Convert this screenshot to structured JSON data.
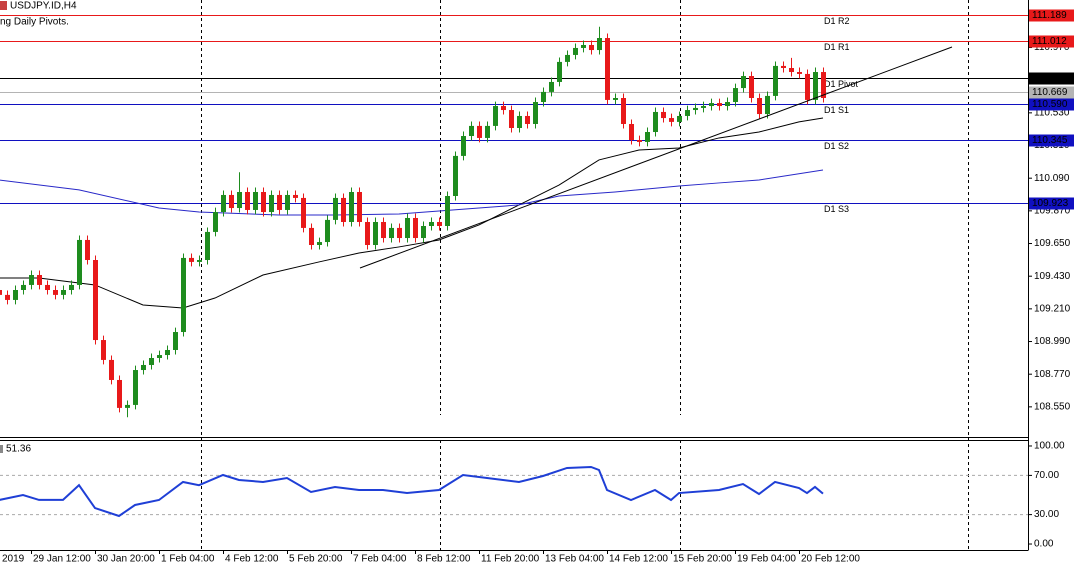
{
  "chart_data": [
    {
      "type": "candlestick",
      "title": "USDJPY.ID,H4",
      "subtitle": "ng Daily Pivots.",
      "categories": [
        "2019",
        null,
        null,
        null,
        "29 Jan 12:00",
        null,
        null,
        null,
        null,
        null,
        null,
        null,
        "30 Jan 20:00",
        null,
        null,
        null,
        null,
        null,
        null,
        null,
        "1 Feb 04:00",
        null,
        null,
        null,
        null,
        null,
        null,
        null,
        "4 Feb 12:00",
        null,
        null,
        null,
        null,
        null,
        null,
        null,
        "5 Feb 20:00",
        null,
        null,
        null,
        null,
        null,
        null,
        null,
        "7 Feb 04:00",
        null,
        null,
        null,
        null,
        null,
        null,
        null,
        "8 Feb 12:00",
        null,
        null,
        null,
        null,
        null,
        null,
        null,
        "11 Feb 20:00",
        null,
        null,
        null,
        null,
        null,
        null,
        null,
        "13 Feb 04:00",
        null,
        null,
        null,
        null,
        null,
        null,
        null,
        "14 Feb 12:00",
        null,
        null,
        null,
        null,
        null,
        null,
        null,
        "15 Feb 20:00",
        null,
        null,
        null,
        null,
        null,
        null,
        null,
        "19 Feb 04:00",
        null,
        null,
        null,
        null,
        null,
        null,
        null,
        "20 Feb 12:00",
        null,
        null,
        null
      ],
      "open": [
        109.337,
        109.304,
        109.27,
        109.337,
        109.371,
        109.438,
        109.371,
        109.337,
        109.304,
        109.337,
        109.371,
        109.674,
        109.539,
        109.0,
        108.866,
        108.731,
        108.543,
        108.563,
        108.798,
        108.832,
        108.879,
        108.899,
        108.933,
        109.054,
        109.553,
        109.526,
        109.539,
        109.728,
        109.862,
        109.977,
        109.889,
        109.997,
        109.876,
        109.997,
        109.862,
        109.977,
        109.876,
        109.977,
        109.957,
        109.755,
        109.64,
        109.66,
        109.809,
        109.957,
        109.795,
        109.997,
        109.795,
        109.64,
        109.795,
        109.687,
        109.755,
        109.687,
        109.822,
        109.687,
        109.768,
        109.795,
        109.768,
        109.97,
        110.24,
        110.374,
        110.442,
        110.361,
        110.442,
        110.576,
        110.549,
        110.428,
        110.509,
        110.455,
        110.603,
        110.671,
        110.738,
        110.873,
        110.92,
        110.967,
        110.987,
        110.953,
        111.034,
        110.617,
        110.63,
        110.455,
        110.347,
        110.334,
        110.401,
        110.536,
        110.495,
        110.469,
        110.509,
        110.549,
        110.563,
        110.576,
        110.596,
        110.576,
        110.603,
        110.697,
        110.778,
        110.63,
        110.522,
        110.644,
        110.846,
        110.832,
        110.805,
        110.792,
        110.617,
        110.805
      ],
      "high": [
        109.367,
        109.334,
        109.367,
        109.401,
        109.468,
        109.468,
        109.401,
        109.367,
        109.367,
        109.401,
        109.704,
        109.704,
        109.569,
        109.03,
        108.896,
        108.761,
        108.593,
        108.828,
        108.862,
        108.909,
        108.929,
        108.963,
        109.084,
        109.583,
        109.583,
        109.569,
        109.758,
        109.892,
        110.007,
        110.007,
        110.13,
        110.027,
        110.027,
        110.027,
        110.007,
        110.007,
        110.007,
        110.007,
        109.987,
        109.785,
        109.69,
        109.839,
        109.987,
        109.987,
        110.027,
        110.027,
        109.825,
        109.825,
        109.825,
        109.785,
        109.785,
        109.852,
        109.852,
        109.798,
        109.825,
        109.825,
        110.0,
        110.27,
        110.404,
        110.472,
        110.472,
        110.472,
        110.606,
        110.606,
        110.579,
        110.539,
        110.539,
        110.633,
        110.701,
        110.768,
        110.903,
        110.95,
        110.997,
        111.017,
        111.017,
        111.11,
        111.064,
        110.66,
        110.66,
        110.485,
        110.377,
        110.431,
        110.566,
        110.566,
        110.525,
        110.539,
        110.579,
        110.593,
        110.606,
        110.626,
        110.626,
        110.633,
        110.727,
        110.808,
        110.808,
        110.66,
        110.674,
        110.876,
        110.876,
        110.9,
        110.835,
        110.822,
        110.835,
        110.835
      ],
      "low": [
        109.274,
        109.24,
        109.24,
        109.307,
        109.341,
        109.341,
        109.307,
        109.274,
        109.274,
        109.307,
        109.341,
        109.509,
        108.97,
        108.836,
        108.701,
        108.513,
        108.48,
        108.533,
        108.768,
        108.802,
        108.849,
        108.869,
        108.903,
        109.024,
        109.496,
        109.496,
        109.509,
        109.698,
        109.832,
        109.859,
        109.859,
        109.846,
        109.846,
        109.832,
        109.832,
        109.846,
        109.846,
        109.927,
        109.725,
        109.61,
        109.61,
        109.63,
        109.779,
        109.765,
        109.765,
        109.765,
        109.61,
        109.61,
        109.657,
        109.657,
        109.657,
        109.657,
        109.657,
        109.657,
        109.738,
        109.738,
        109.738,
        109.94,
        110.21,
        110.344,
        110.331,
        110.331,
        110.412,
        110.519,
        110.398,
        110.398,
        110.425,
        110.425,
        110.573,
        110.641,
        110.708,
        110.843,
        110.89,
        110.937,
        110.923,
        110.923,
        110.587,
        110.587,
        110.425,
        110.317,
        110.304,
        110.304,
        110.371,
        110.465,
        110.439,
        110.439,
        110.479,
        110.519,
        110.533,
        110.546,
        110.546,
        110.546,
        110.573,
        110.667,
        110.6,
        110.492,
        110.492,
        110.614,
        110.802,
        110.775,
        110.762,
        110.587,
        110.587,
        110.6
      ],
      "close": [
        109.304,
        109.27,
        109.337,
        109.371,
        109.438,
        109.371,
        109.337,
        109.304,
        109.337,
        109.371,
        109.674,
        109.539,
        109.0,
        108.866,
        108.731,
        108.543,
        108.563,
        108.798,
        108.832,
        108.879,
        108.899,
        108.933,
        109.054,
        109.553,
        109.526,
        109.539,
        109.728,
        109.862,
        109.977,
        109.889,
        109.997,
        109.876,
        109.997,
        109.862,
        109.977,
        109.876,
        109.977,
        109.957,
        109.755,
        109.64,
        109.66,
        109.809,
        109.957,
        109.795,
        109.997,
        109.795,
        109.64,
        109.795,
        109.687,
        109.755,
        109.687,
        109.822,
        109.687,
        109.768,
        109.795,
        109.768,
        109.97,
        110.24,
        110.374,
        110.442,
        110.361,
        110.442,
        110.576,
        110.549,
        110.428,
        110.509,
        110.455,
        110.603,
        110.671,
        110.738,
        110.873,
        110.92,
        110.967,
        110.987,
        110.953,
        111.034,
        110.617,
        110.63,
        110.455,
        110.347,
        110.334,
        110.401,
        110.536,
        110.495,
        110.469,
        110.509,
        110.549,
        110.563,
        110.576,
        110.596,
        110.576,
        110.603,
        110.697,
        110.778,
        110.63,
        110.522,
        110.644,
        110.846,
        110.832,
        110.805,
        110.792,
        110.617,
        110.805,
        110.63
      ],
      "up_color": "#1e8c1e",
      "down_color": "#e8191a",
      "overlays": [
        {
          "color": "#000000",
          "x": [
            0,
            5,
            12,
            18,
            23,
            27,
            33,
            40,
            45,
            50,
            55,
            60,
            65,
            70,
            75,
            80,
            85,
            90,
            95,
            100,
            103
          ],
          "values": [
            109.418,
            109.418,
            109.371,
            109.236,
            109.216,
            109.283,
            109.438,
            109.526,
            109.586,
            109.627,
            109.674,
            109.775,
            109.91,
            110.044,
            110.213,
            110.28,
            110.293,
            110.361,
            110.401,
            110.469,
            110.495
          ]
        },
        {
          "color": "#2828c8",
          "x": [
            0,
            10,
            20,
            25,
            35,
            42,
            50,
            60,
            65,
            70,
            77,
            85,
            90,
            95,
            103
          ],
          "values": [
            110.078,
            110.011,
            109.889,
            109.862,
            109.842,
            109.842,
            109.849,
            109.889,
            109.91,
            109.97,
            109.997,
            110.037,
            110.058,
            110.078,
            110.145
          ]
        }
      ],
      "levels": {
        "names": [
          "D1 R2",
          "D1 R1",
          "D1 Pivot",
          "D1 S1",
          "D1 S2",
          "D1 S3",
          null
        ],
        "values": [
          111.189,
          111.012,
          110.767,
          110.59,
          110.345,
          109.923,
          110.669
        ],
        "value_labels": [
          "111.189",
          "111.012",
          "110.767",
          "110.590",
          "110.345",
          "109.923",
          "110.669"
        ],
        "colors": [
          "#e8191a",
          "#e8191a",
          "#000000",
          "#1010c0",
          "#1010c0",
          "#1010c0",
          "#b4b4b4"
        ]
      },
      "ylim": [
        108.347,
        111.29
      ],
      "yticks": [
        {
          "value": 110.97,
          "label": "110.970"
        },
        {
          "value": 110.75,
          "label": "110.750"
        },
        {
          "value": 110.53,
          "label": "110.530"
        },
        {
          "value": 110.31,
          "label": "110.310"
        },
        {
          "value": 110.09,
          "label": "110.090"
        },
        {
          "value": 109.87,
          "label": "109.870"
        },
        {
          "value": 109.65,
          "label": "109.650"
        },
        {
          "value": 109.43,
          "label": "109.430"
        },
        {
          "value": 109.21,
          "label": "109.210"
        },
        {
          "value": 108.99,
          "label": "108.990"
        },
        {
          "value": 108.77,
          "label": "108.770"
        },
        {
          "value": 108.55,
          "label": "108.550"
        }
      ]
    },
    {
      "type": "line",
      "color": "#1f3fd6",
      "x": [
        0,
        3,
        5,
        8,
        10,
        12,
        15,
        17,
        20,
        23,
        25,
        28,
        30,
        33,
        36,
        39,
        42,
        45,
        48,
        51,
        55,
        58,
        61,
        65,
        68,
        71,
        74,
        75,
        76,
        79,
        82,
        84,
        85,
        90,
        93,
        95,
        97,
        100,
        101,
        102,
        103
      ],
      "values": [
        44.9,
        50,
        45,
        45,
        60,
        36.7,
        28.6,
        39.8,
        44.9,
        63.3,
        60,
        70.4,
        65.3,
        63.3,
        67.3,
        53.1,
        58.2,
        55.1,
        55.1,
        52,
        55.1,
        70.4,
        67.3,
        63.3,
        69.4,
        77.6,
        78.6,
        75.5,
        55.1,
        44.9,
        55.1,
        44.9,
        52,
        55.1,
        61.2,
        51,
        63.3,
        57.1,
        52,
        58.2,
        51.36
      ],
      "levels": [
        70,
        30
      ],
      "ylim": [
        -6.1,
        106.1
      ],
      "yticks": [
        {
          "value": 100,
          "label": "100.00"
        },
        {
          "value": 70,
          "label": "70.00"
        },
        {
          "value": 30,
          "label": "30.00"
        },
        {
          "value": 0,
          "label": "0.00"
        }
      ]
    }
  ]
}
